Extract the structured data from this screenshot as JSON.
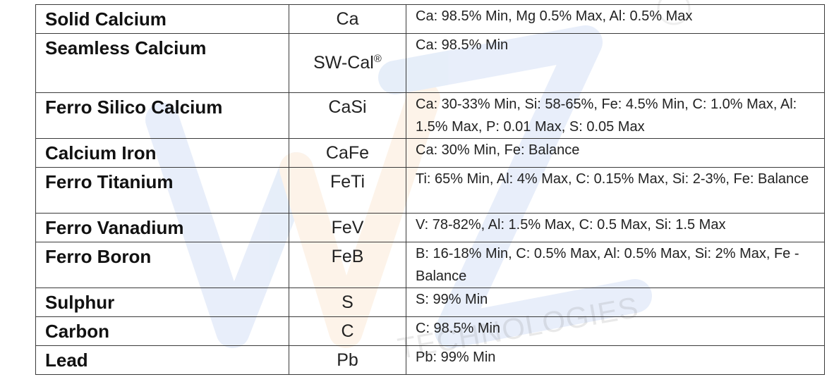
{
  "watermark": {
    "text": "TECHNOLOGIES"
  },
  "rows": [
    {
      "name": "Solid Calcium",
      "symbol": "Ca",
      "composition": "Ca: 98.5% Min, Mg 0.5% Max, Al: 0.5% Max"
    },
    {
      "name": "Seamless Calcium",
      "symbol": "SW-Cal",
      "symbol_sup": "®",
      "composition": "Ca: 98.5% Min"
    },
    {
      "name": "Ferro Silico Calcium",
      "symbol": "CaSi",
      "composition": "Ca: 30-33% Min, Si: 58-65%, Fe: 4.5% Min, C: 1.0% Max, Al: 1.5% Max, P: 0.01 Max, S: 0.05 Max"
    },
    {
      "name": "Calcium Iron",
      "symbol": "CaFe",
      "composition": "Ca: 30% Min, Fe: Balance"
    },
    {
      "name": "Ferro Titanium",
      "symbol": "FeTi",
      "composition": "Ti: 65% Min, Al: 4% Max, C: 0.15% Max, Si: 2-3%, Fe: Balance"
    },
    {
      "name": "Ferro Vanadium",
      "symbol": "FeV",
      "composition": "V: 78-82%, Al: 1.5% Max, C: 0.5 Max, Si: 1.5 Max"
    },
    {
      "name": "Ferro Boron",
      "symbol": "FeB",
      "composition": "B: 16-18% Min, C: 0.5% Max, Al: 0.5% Max, Si: 2% Max, Fe - Balance"
    },
    {
      "name": "Sulphur",
      "symbol": "S",
      "composition": "S: 99% Min"
    },
    {
      "name": "Carbon",
      "symbol": "C",
      "composition": "C: 98.5% Min"
    },
    {
      "name": "Lead",
      "symbol": "Pb",
      "composition": "Pb: 99% Min"
    }
  ],
  "colors": {
    "border": "#3a3a3a",
    "watermark_blue": "#4a7fd6",
    "watermark_orange": "#f2a65a"
  }
}
